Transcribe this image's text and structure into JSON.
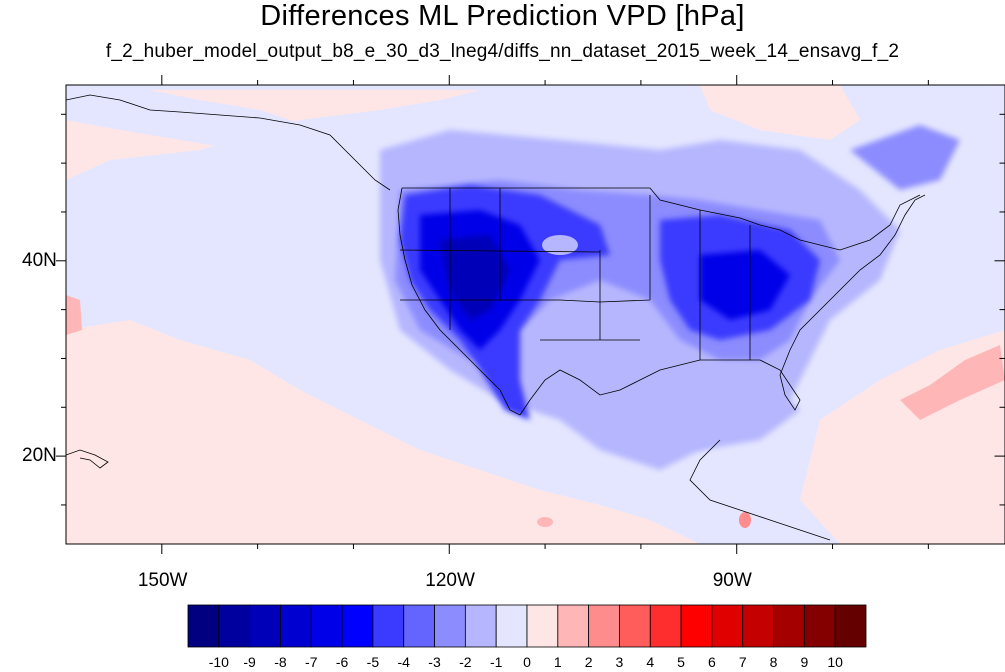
{
  "title": "Differences ML Prediction VPD [hPa]",
  "subtitle": "f_2_huber_model_output_b8_e_30_d3_lneg4/diffs_nn_dataset_2015_week_14_ensavg_f_2",
  "map": {
    "lon_range": [
      -160,
      -62
    ],
    "lat_range": [
      11,
      58
    ],
    "x_ticks": [
      {
        "lon": -150,
        "label": "150W"
      },
      {
        "lon": -120,
        "label": "120W"
      },
      {
        "lon": -90,
        "label": "90W"
      }
    ],
    "y_ticks": [
      {
        "lat": 40,
        "label": "40N"
      },
      {
        "lat": 20,
        "label": "20N"
      }
    ]
  },
  "colorbar": {
    "levels": [
      "-10",
      "-9",
      "-8",
      "-7",
      "-6",
      "-5",
      "-4",
      "-3",
      "-2",
      "-1",
      "0",
      "1",
      "2",
      "3",
      "4",
      "5",
      "6",
      "7",
      "8",
      "9",
      "10"
    ],
    "colors": [
      "#000080",
      "#00009e",
      "#0000b8",
      "#0000d0",
      "#0000e8",
      "#0000ff",
      "#3b3bff",
      "#6464ff",
      "#8c8cff",
      "#b6b6ff",
      "#e4e6ff",
      "#ffe6e6",
      "#ffb6b6",
      "#ff8c8c",
      "#ff5c5c",
      "#ff2e2e",
      "#ff0000",
      "#e00000",
      "#c40000",
      "#a40000",
      "#840000",
      "#650000"
    ]
  }
}
